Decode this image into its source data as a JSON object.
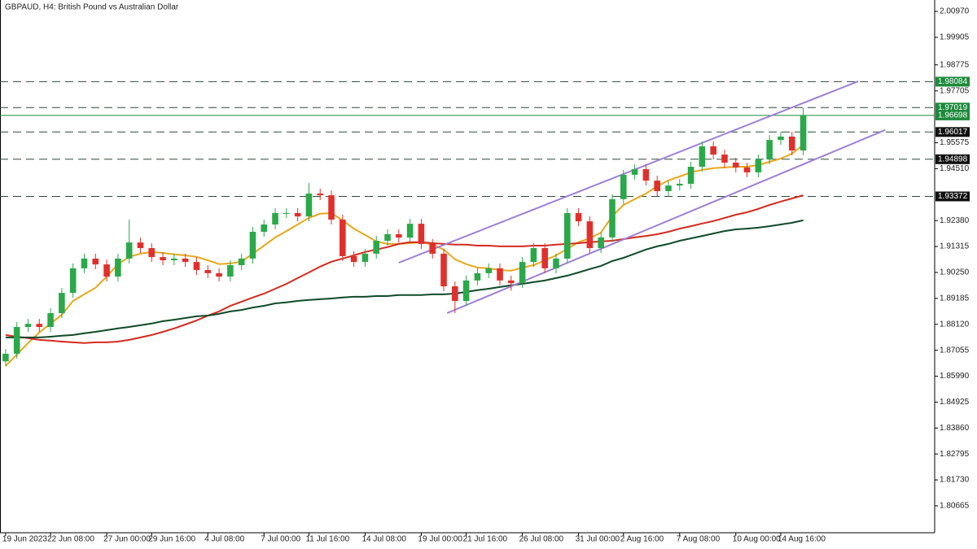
{
  "chart_data": {
    "type": "candlestick",
    "title": "GBPAUD, H4:  British Pound vs Australian Dollar",
    "categories": [
      "19 Jun 2023",
      null,
      null,
      null,
      "22 Jun 08:00",
      null,
      null,
      null,
      null,
      "27 Jun 00:00",
      null,
      null,
      null,
      "29 Jun 16:00",
      null,
      null,
      null,
      null,
      "4 Jul 08:00",
      null,
      null,
      null,
      null,
      "7 Jul 00:00",
      null,
      null,
      null,
      "11 Jul 16:00",
      null,
      null,
      null,
      null,
      "14 Jul 08:00",
      null,
      null,
      null,
      null,
      "19 Jul 00:00",
      null,
      null,
      null,
      "21 Jul 16:00",
      null,
      null,
      null,
      null,
      "26 Jul 08:00",
      null,
      null,
      null,
      null,
      "31 Jul 00:00",
      null,
      null,
      null,
      "2 Aug 16:00",
      null,
      null,
      null,
      null,
      "7 Aug 08:00",
      null,
      null,
      null,
      null,
      "10 Aug 00:00",
      null,
      null,
      null,
      "14 Aug 16:00",
      null,
      null
    ],
    "open": [
      1.866,
      1.8691,
      1.8801,
      1.8814,
      1.8801,
      1.8858,
      1.8941,
      1.9042,
      1.9082,
      1.9058,
      1.9008,
      1.9082,
      1.9148,
      1.9125,
      1.9088,
      1.9075,
      1.9082,
      1.9068,
      1.9035,
      1.9022,
      1.9008,
      1.9055,
      1.9082,
      1.9192,
      1.9222,
      1.9269,
      1.9269,
      1.9255,
      1.9349,
      1.9342,
      1.9242,
      1.9092,
      1.9068,
      1.9102,
      1.9155,
      1.9182,
      1.9168,
      1.9225,
      1.9142,
      1.9102,
      1.8968,
      1.8908,
      1.8992,
      1.9022,
      1.9042,
      1.8992,
      1.8981,
      1.9068,
      1.9125,
      1.9042,
      1.9082,
      1.9269,
      1.9235,
      1.9125,
      1.9169,
      1.9326,
      1.9426,
      1.9449,
      1.9402,
      1.9359,
      1.9382,
      1.9389,
      1.9459,
      1.9543,
      1.9509,
      1.9476,
      1.9456,
      1.9436,
      1.9489,
      1.9569,
      1.9583,
      1.9526
    ],
    "high": [
      1.8711,
      1.8821,
      1.8834,
      1.8834,
      1.8878,
      1.8961,
      1.9062,
      1.9102,
      1.9102,
      1.9078,
      1.9102,
      1.9242,
      1.9168,
      1.9145,
      1.9108,
      1.9102,
      1.9102,
      1.9088,
      1.9055,
      1.9042,
      1.9075,
      1.9102,
      1.9212,
      1.9242,
      1.9289,
      1.9289,
      1.9289,
      1.9392,
      1.9369,
      1.9362,
      1.9262,
      1.9112,
      1.9122,
      1.9175,
      1.9202,
      1.9202,
      1.9245,
      1.9245,
      1.9162,
      1.9122,
      1.8988,
      1.9012,
      1.9042,
      1.9062,
      1.9062,
      1.9012,
      1.9088,
      1.9145,
      1.9145,
      1.9102,
      1.9289,
      1.9289,
      1.9255,
      1.9189,
      1.9346,
      1.9446,
      1.9469,
      1.9469,
      1.9422,
      1.9402,
      1.9409,
      1.9479,
      1.9563,
      1.9563,
      1.9529,
      1.9496,
      1.9476,
      1.9509,
      1.9589,
      1.9603,
      1.9603,
      1.9701
    ],
    "low": [
      1.864,
      1.8671,
      1.8781,
      1.8781,
      1.8781,
      1.8838,
      1.8921,
      1.9022,
      1.9038,
      1.8988,
      1.8988,
      1.9062,
      1.9105,
      1.9068,
      1.9055,
      1.9055,
      1.9048,
      1.9015,
      1.9002,
      1.8988,
      1.8988,
      1.9035,
      1.9062,
      1.9172,
      1.9202,
      1.9249,
      1.9235,
      1.9235,
      1.9322,
      1.9222,
      1.9072,
      1.9048,
      1.9048,
      1.9082,
      1.9135,
      1.9148,
      1.9148,
      1.9122,
      1.9082,
      1.8948,
      1.8858,
      1.8888,
      1.8972,
      1.9002,
      1.8972,
      1.895,
      1.8961,
      1.9048,
      1.9022,
      1.9022,
      1.9062,
      1.9215,
      1.9105,
      1.9105,
      1.9149,
      1.9306,
      1.9406,
      1.9382,
      1.9339,
      1.9339,
      1.9362,
      1.9369,
      1.9439,
      1.9489,
      1.9456,
      1.9436,
      1.9416,
      1.9416,
      1.9469,
      1.9549,
      1.9506,
      1.9506
    ],
    "close": [
      1.8691,
      1.8801,
      1.8814,
      1.8801,
      1.8858,
      1.8941,
      1.9042,
      1.9082,
      1.9058,
      1.9008,
      1.9082,
      1.9148,
      1.9125,
      1.9088,
      1.9075,
      1.9082,
      1.9068,
      1.9035,
      1.9022,
      1.9008,
      1.9055,
      1.9082,
      1.9192,
      1.9222,
      1.9269,
      1.9269,
      1.9255,
      1.9349,
      1.9342,
      1.9242,
      1.9092,
      1.9068,
      1.9102,
      1.9155,
      1.9182,
      1.9168,
      1.9225,
      1.9142,
      1.9102,
      1.8968,
      1.8908,
      1.8992,
      1.9022,
      1.9042,
      1.8992,
      1.8981,
      1.9068,
      1.9125,
      1.9042,
      1.9082,
      1.9269,
      1.9235,
      1.9125,
      1.9169,
      1.9326,
      1.9426,
      1.9449,
      1.9402,
      1.9359,
      1.9382,
      1.9389,
      1.9459,
      1.9543,
      1.9509,
      1.9476,
      1.9456,
      1.9436,
      1.9489,
      1.9569,
      1.9583,
      1.9526,
      1.967
    ],
    "up_color": "#2ba84a",
    "down_color": "#e0302c",
    "xlim": [
      -0.5,
      82.7
    ],
    "ylim": [
      1.79561,
      2.01438
    ],
    "yticks": [
      {
        "value": 2.0097,
        "label": "2.00970"
      },
      1.99905,
      1.98775,
      1.97705,
      1.95575,
      {
        "value": 1.9451,
        "label": "1.94510"
      },
      {
        "value": 1.9238,
        "label": "1.92380"
      },
      1.91315,
      {
        "value": 1.9025,
        "label": "1.90250"
      },
      1.89185,
      {
        "value": 1.8812,
        "label": "1.88120"
      },
      1.87055,
      {
        "value": 1.8599,
        "label": "1.85990"
      },
      1.84925,
      {
        "value": 1.8386,
        "label": "1.83860"
      },
      1.82795,
      {
        "value": 1.8173,
        "label": "1.81730"
      },
      1.80665
    ],
    "moving_averages": [
      {
        "color": "#e8a81c",
        "values": [
          1.8641,
          1.8688,
          1.8735,
          1.8778,
          1.8815,
          1.8851,
          1.8908,
          1.8935,
          1.8962,
          1.9008,
          1.9059,
          1.9089,
          1.9102,
          1.9109,
          1.9105,
          1.9099,
          1.9095,
          1.9089,
          1.9075,
          1.9059,
          1.9062,
          1.9069,
          1.9102,
          1.9135,
          1.9169,
          1.9195,
          1.9222,
          1.9249,
          1.9266,
          1.9269,
          1.9239,
          1.9205,
          1.9179,
          1.9152,
          1.9142,
          1.9142,
          1.9145,
          1.9149,
          1.9139,
          1.9119,
          1.9079,
          1.9059,
          1.9045,
          1.9042,
          1.9035,
          1.9032,
          1.9045,
          1.9055,
          1.9075,
          1.9095,
          1.9122,
          1.9149,
          1.9165,
          1.9189,
          1.9256,
          1.9302,
          1.9326,
          1.9349,
          1.9379,
          1.9403,
          1.9419,
          1.9436,
          1.9446,
          1.9453,
          1.9456,
          1.9459,
          1.9459,
          1.9466,
          1.9479,
          1.9493,
          1.9513,
          1.9549
        ]
      },
      {
        "color": "#d42a1e",
        "values": [
          1.8768,
          1.8761,
          1.8755,
          1.8748,
          1.8745,
          1.8741,
          1.8738,
          1.8735,
          1.8738,
          1.8738,
          1.8741,
          1.8748,
          1.8758,
          1.8768,
          1.8781,
          1.8795,
          1.8811,
          1.8828,
          1.8848,
          1.8865,
          1.8888,
          1.8905,
          1.8922,
          1.8938,
          1.8958,
          1.8978,
          1.9002,
          1.9025,
          1.9049,
          1.9069,
          1.9082,
          1.9095,
          1.9109,
          1.9119,
          1.9129,
          1.9142,
          1.9149,
          1.9149,
          1.9145,
          1.9142,
          1.9139,
          1.9139,
          1.9135,
          1.9135,
          1.9132,
          1.9132,
          1.9132,
          1.9135,
          1.9135,
          1.9139,
          1.9142,
          1.9145,
          1.9149,
          1.9152,
          1.9155,
          1.9162,
          1.9169,
          1.9175,
          1.9182,
          1.9192,
          1.9205,
          1.9215,
          1.9226,
          1.9236,
          1.9249,
          1.9262,
          1.9272,
          1.9286,
          1.9302,
          1.9316,
          1.9329,
          1.9342
        ]
      },
      {
        "color": "#0f4a2a",
        "values": [
          1.8758,
          1.8758,
          1.8758,
          1.8758,
          1.8761,
          1.8765,
          1.8768,
          1.8775,
          1.8781,
          1.8788,
          1.8795,
          1.8801,
          1.8808,
          1.8815,
          1.8825,
          1.8831,
          1.8838,
          1.8845,
          1.8848,
          1.8855,
          1.8865,
          1.8871,
          1.8881,
          1.8888,
          1.8898,
          1.8902,
          1.8908,
          1.8912,
          1.8915,
          1.8918,
          1.8922,
          1.8925,
          1.8925,
          1.8928,
          1.8928,
          1.8932,
          1.8932,
          1.8932,
          1.8935,
          1.8935,
          1.8938,
          1.8945,
          1.8952,
          1.8958,
          1.8965,
          1.8972,
          1.8978,
          1.8985,
          1.8992,
          1.9002,
          1.9012,
          1.9025,
          1.9039,
          1.9052,
          1.9072,
          1.9085,
          1.9102,
          1.9119,
          1.9132,
          1.9142,
          1.9155,
          1.9165,
          1.9175,
          1.9185,
          1.9195,
          1.9202,
          1.9205,
          1.9209,
          1.9215,
          1.9222,
          1.9229,
          1.9239
        ]
      }
    ],
    "trendlines": [
      {
        "color": "#9c80d6",
        "x": [
          35,
          75.9
        ],
        "values": [
          1.9065,
          1.981
        ]
      },
      {
        "color": "#9c80d6",
        "x": [
          39.3,
          78.3
        ],
        "values": [
          1.8858,
          1.961
        ]
      }
    ],
    "levels": [
      {
        "value": 1.98084,
        "style": "dashed",
        "color": "#2e4a3a",
        "label_bg": "#1e8a3c"
      },
      {
        "value": 1.97019,
        "style": "dashed",
        "color": "#2e4a3a",
        "label_bg": "#1e8a3c"
      },
      {
        "value": 1.96698,
        "style": "solid",
        "color": "#1e8a3c",
        "label_bg": "#1e8a3c"
      },
      {
        "value": 1.96017,
        "style": "dashed",
        "color": "#2e4a3a",
        "label_bg": "#111111"
      },
      {
        "value": 1.94898,
        "style": "dashed",
        "color": "#2e4a3a",
        "label_bg": "#111111"
      },
      {
        "value": 1.93372,
        "style": "dashed",
        "color": "#2e4a3a",
        "label_bg": "#111111"
      }
    ]
  }
}
